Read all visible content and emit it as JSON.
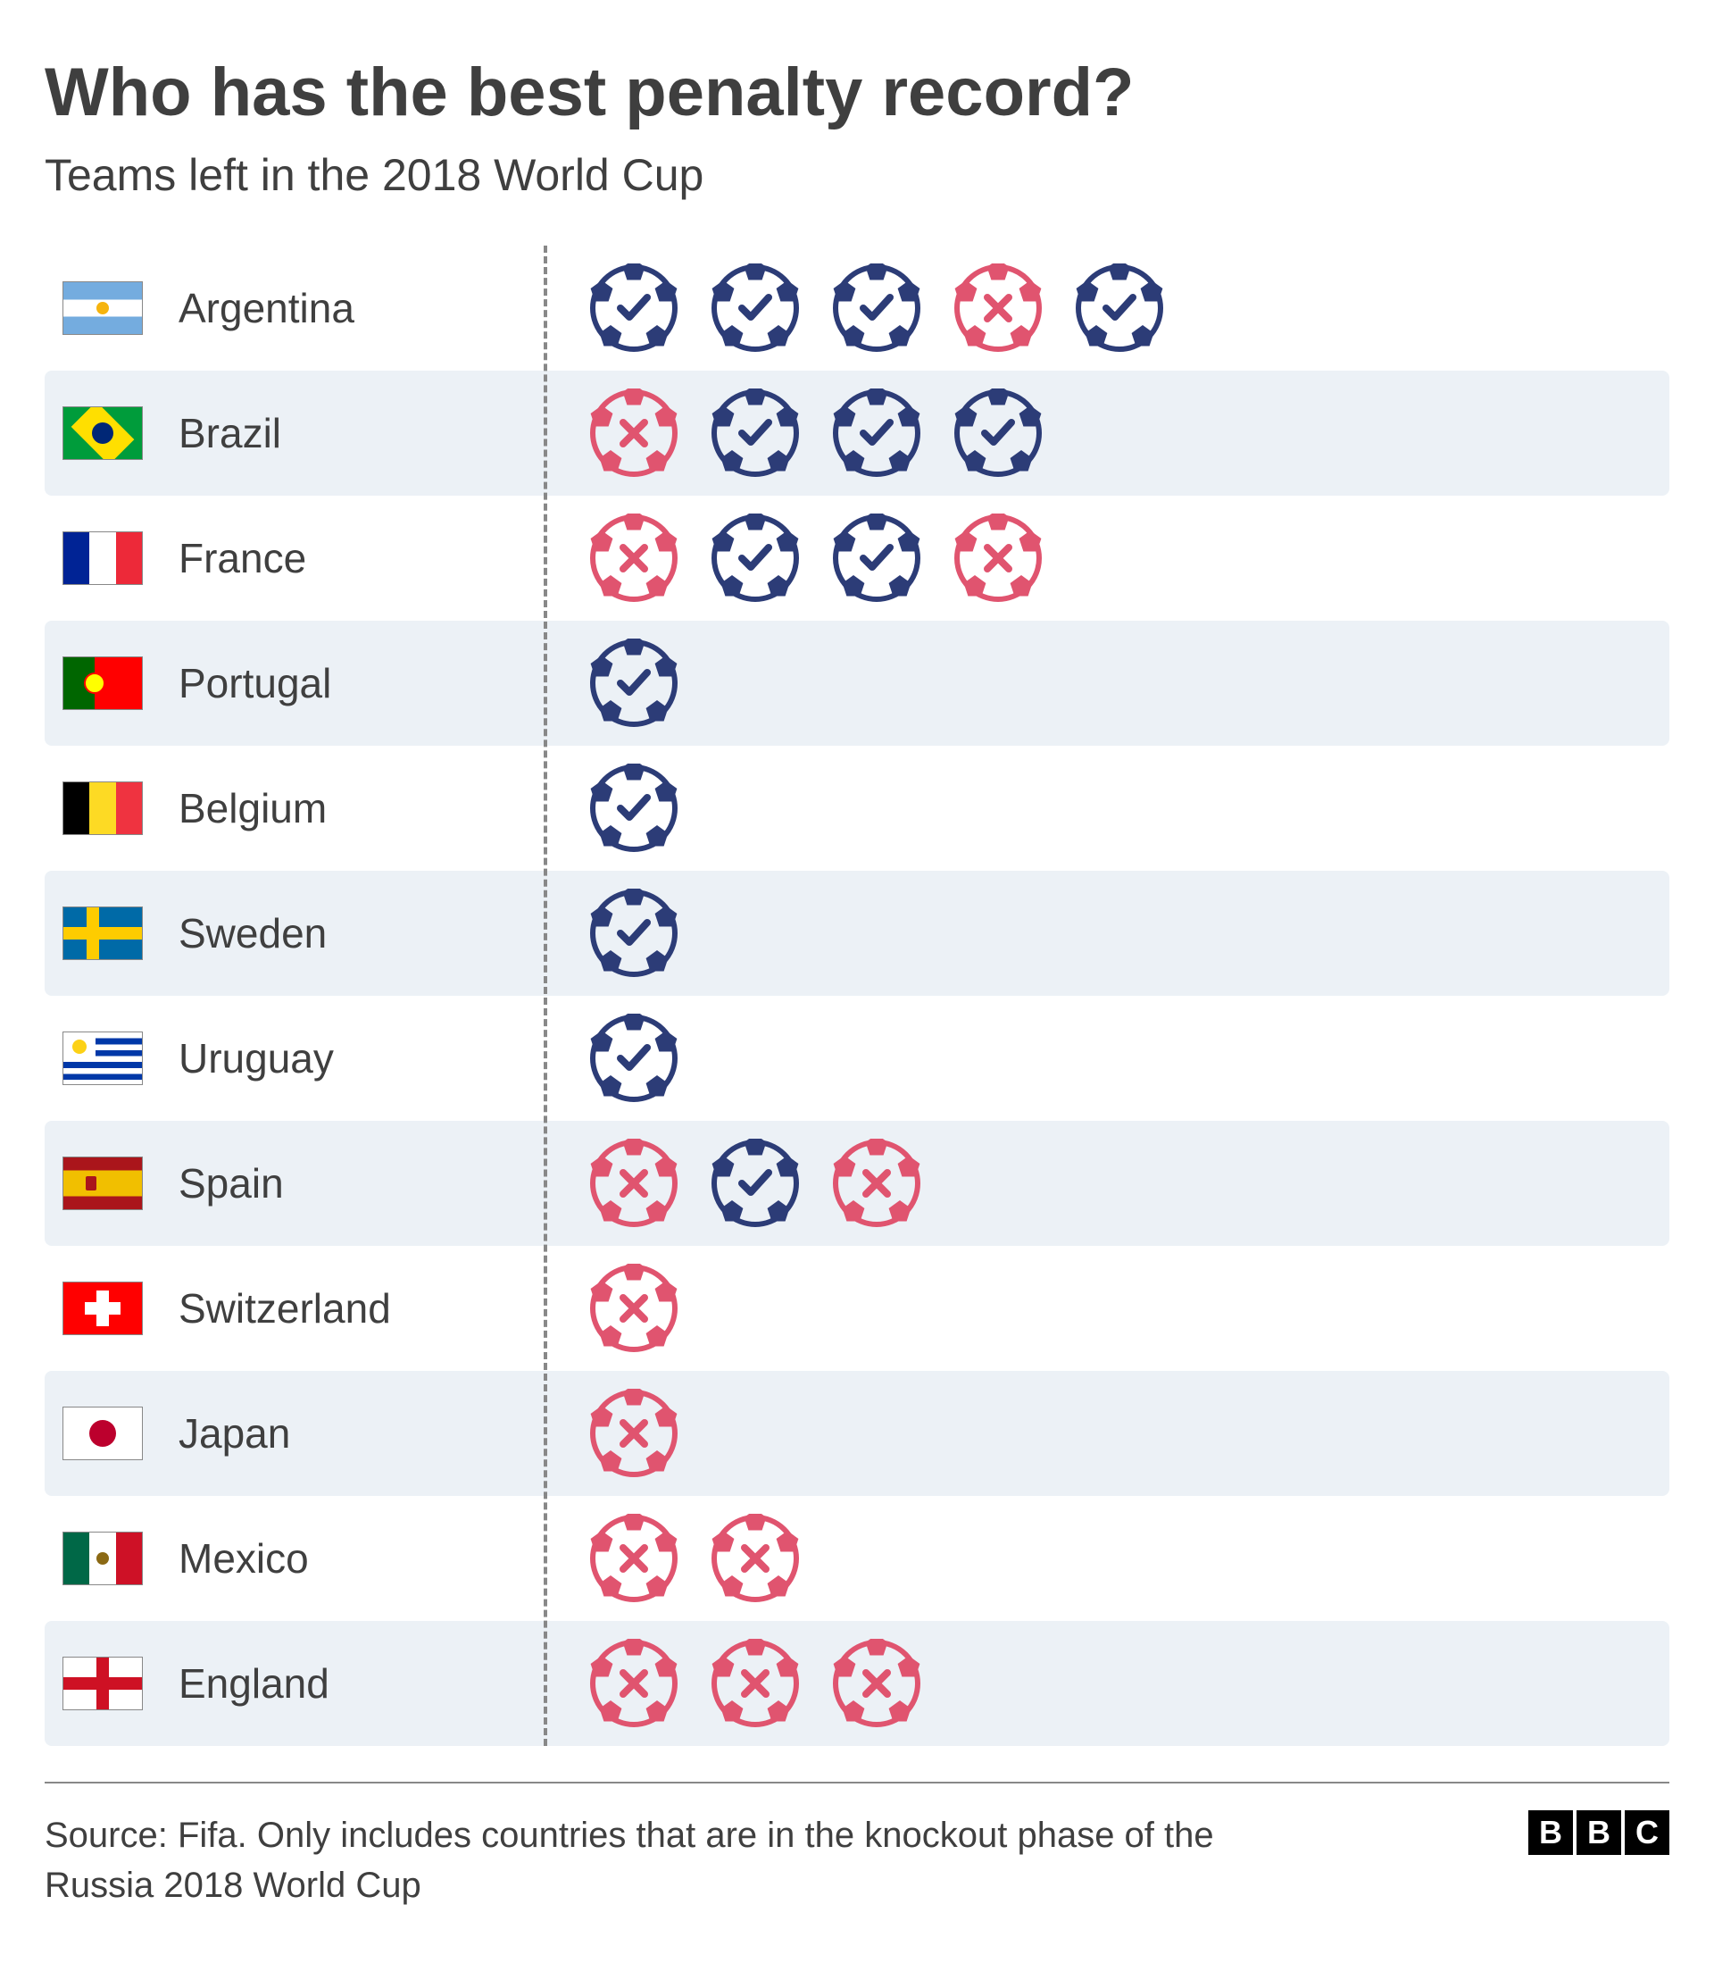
{
  "title": "Who has the best penalty record?",
  "subtitle": "Teams left in the 2018 World Cup",
  "source": "Source: Fifa. Only includes countries that are in the knockout phase of the Russia 2018 World Cup",
  "colors": {
    "win": "#2c3c77",
    "loss": "#e0546f",
    "row_shade": "#ecf1f6",
    "background": "#ffffff",
    "text": "#3f3f3f"
  },
  "logo_text": [
    "B",
    "B",
    "C"
  ],
  "teams": [
    {
      "name": "Argentina",
      "flag": "argentina",
      "results": [
        "win",
        "win",
        "win",
        "loss",
        "win"
      ]
    },
    {
      "name": "Brazil",
      "flag": "brazil",
      "results": [
        "loss",
        "win",
        "win",
        "win"
      ]
    },
    {
      "name": "France",
      "flag": "france",
      "results": [
        "loss",
        "win",
        "win",
        "loss"
      ]
    },
    {
      "name": "Portugal",
      "flag": "portugal",
      "results": [
        "win"
      ]
    },
    {
      "name": "Belgium",
      "flag": "belgium",
      "results": [
        "win"
      ]
    },
    {
      "name": "Sweden",
      "flag": "sweden",
      "results": [
        "win"
      ]
    },
    {
      "name": "Uruguay",
      "flag": "uruguay",
      "results": [
        "win"
      ]
    },
    {
      "name": "Spain",
      "flag": "spain",
      "results": [
        "loss",
        "win",
        "loss"
      ]
    },
    {
      "name": "Switzerland",
      "flag": "switzerland",
      "results": [
        "loss"
      ]
    },
    {
      "name": "Japan",
      "flag": "japan",
      "results": [
        "loss"
      ]
    },
    {
      "name": "Mexico",
      "flag": "mexico",
      "results": [
        "loss",
        "loss"
      ]
    },
    {
      "name": "England",
      "flag": "england",
      "results": [
        "loss",
        "loss",
        "loss"
      ]
    }
  ],
  "flags": {
    "france": [
      "#002395",
      "#ffffff",
      "#ed2939"
    ],
    "belgium": [
      "#000000",
      "#fdda24",
      "#ef3340"
    ],
    "mexico": [
      "#006847",
      "#ffffff",
      "#ce1126"
    ]
  }
}
